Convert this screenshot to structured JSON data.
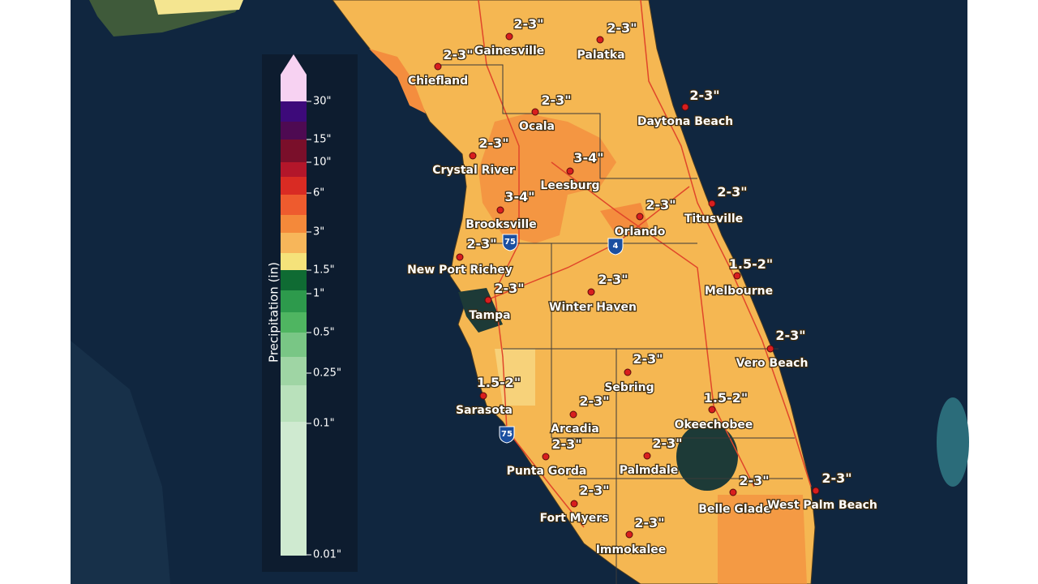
{
  "legend": {
    "title": "Precipitation (in)",
    "labels": [
      "30\"",
      "15\"",
      "10\"",
      "6\"",
      "3\"",
      "1.5\"",
      "1\"",
      "0.5\"",
      "0.25\"",
      "0.1\"",
      "0.01\""
    ]
  },
  "highways": [
    "75",
    "75",
    "4"
  ],
  "cities": [
    {
      "name": "Gainesville",
      "amount": "2-3\""
    },
    {
      "name": "Palatka",
      "amount": "2-3\""
    },
    {
      "name": "Chiefland",
      "amount": "2-3\""
    },
    {
      "name": "Daytona Beach",
      "amount": "2-3\""
    },
    {
      "name": "Ocala",
      "amount": "2-3\""
    },
    {
      "name": "Crystal River",
      "amount": "2-3\""
    },
    {
      "name": "Leesburg",
      "amount": "3-4\""
    },
    {
      "name": "Titusville",
      "amount": "2-3\""
    },
    {
      "name": "Brooksville",
      "amount": "3-4\""
    },
    {
      "name": "Orlando",
      "amount": "2-3\""
    },
    {
      "name": "New Port Richey",
      "amount": "2-3\""
    },
    {
      "name": "Melbourne",
      "amount": "1.5-2\""
    },
    {
      "name": "Tampa",
      "amount": "2-3\""
    },
    {
      "name": "Winter Haven",
      "amount": "2-3\""
    },
    {
      "name": "Vero Beach",
      "amount": "2-3\""
    },
    {
      "name": "Sebring",
      "amount": "2-3\""
    },
    {
      "name": "Sarasota",
      "amount": "1.5-2\""
    },
    {
      "name": "Okeechobee",
      "amount": "1.5-2\""
    },
    {
      "name": "Arcadia",
      "amount": "2-3\""
    },
    {
      "name": "Punta Gorda",
      "amount": "2-3\""
    },
    {
      "name": "Palmdale",
      "amount": "2-3\""
    },
    {
      "name": "Belle Glade",
      "amount": "2-3\""
    },
    {
      "name": "West Palm Beach",
      "amount": "2-3\""
    },
    {
      "name": "Fort Myers",
      "amount": "2-3\""
    },
    {
      "name": "Immokalee",
      "amount": "2-3\""
    }
  ]
}
